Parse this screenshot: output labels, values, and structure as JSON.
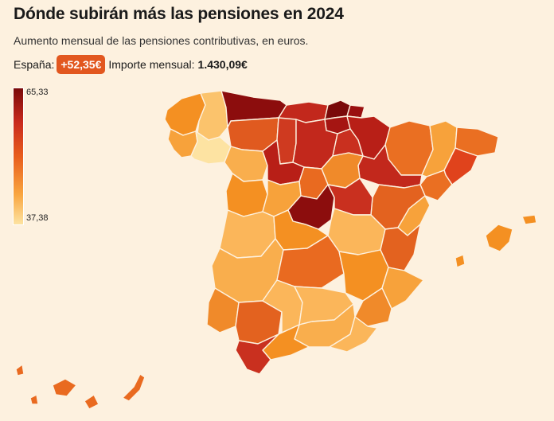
{
  "title": "Dónde subirán más las pensiones en 2024",
  "subtitle": "Aumento mensual de las pensiones contributivas, en euros.",
  "summary": {
    "country_label": "España:",
    "increase_badge": "+52,35€",
    "amount_label": "Importe mensual:",
    "amount_value": "1.430,09€"
  },
  "legend": {
    "max_label": "65,33",
    "min_label": "37,38",
    "colors": [
      "#7a0a0a",
      "#c92a1e",
      "#e85d1c",
      "#f9a640",
      "#fde3a2"
    ]
  },
  "colors": {
    "background": "#fdf1df",
    "badge": "#e2571f"
  }
}
